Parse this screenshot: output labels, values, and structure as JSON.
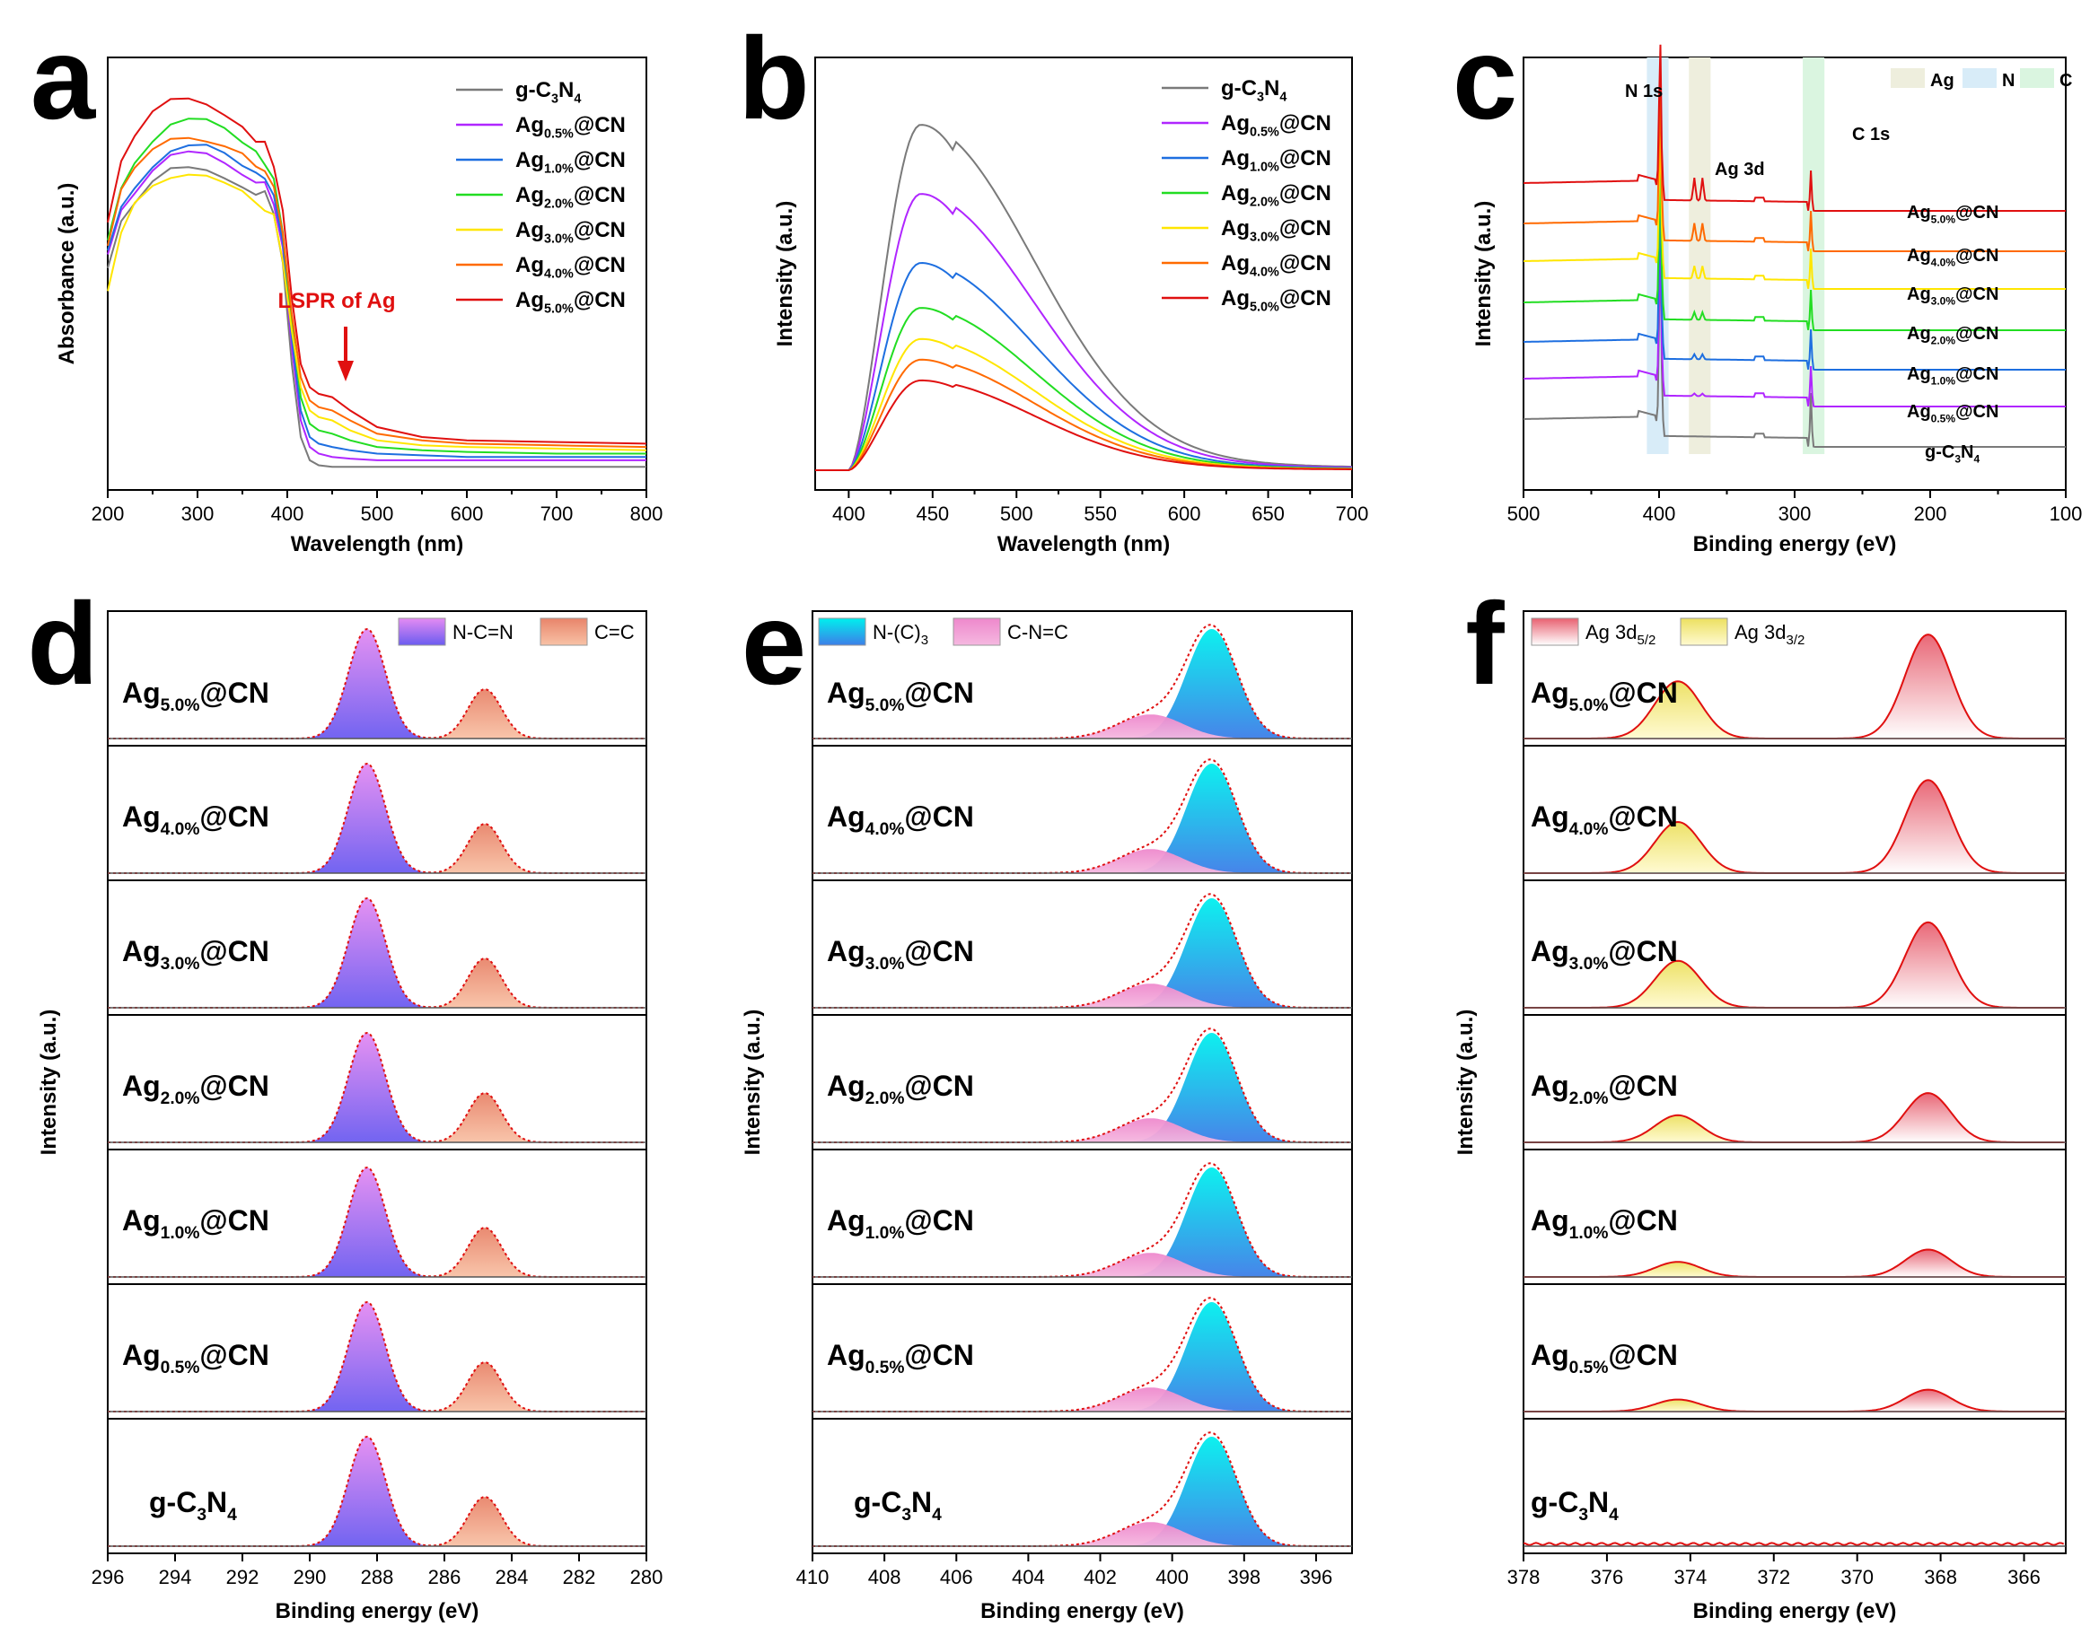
{
  "figure": {
    "series_colors": {
      "g-C3N4": "#7a7a7a",
      "Ag0.5": "#b026ff",
      "Ag1.0": "#1e6fe0",
      "Ag2.0": "#22dd22",
      "Ag3.0": "#ffe600",
      "Ag4.0": "#ff6a00",
      "Ag5.0": "#e01010"
    },
    "sample_labels": [
      {
        "base": "g-C",
        "sub1": "3",
        "mid": "N",
        "sub2": "4",
        "tail": ""
      },
      {
        "base": "Ag",
        "sub1": "0.5%",
        "mid": "",
        "sub2": "",
        "tail": "@CN"
      },
      {
        "base": "Ag",
        "sub1": "1.0%",
        "mid": "",
        "sub2": "",
        "tail": "@CN"
      },
      {
        "base": "Ag",
        "sub1": "2.0%",
        "mid": "",
        "sub2": "",
        "tail": "@CN"
      },
      {
        "base": "Ag",
        "sub1": "3.0%",
        "mid": "",
        "sub2": "",
        "tail": "@CN"
      },
      {
        "base": "Ag",
        "sub1": "4.0%",
        "mid": "",
        "sub2": "",
        "tail": "@CN"
      },
      {
        "base": "Ag",
        "sub1": "5.0%",
        "mid": "",
        "sub2": "",
        "tail": "@CN"
      }
    ],
    "fit_line_color": "#e01010",
    "envelope_color": "#333333"
  },
  "chart_data": [
    {
      "panel": "a",
      "type": "line",
      "title": "",
      "xlabel": "Wavelength (nm)",
      "ylabel": "Absorbance (a.u.)",
      "xlim": [
        200,
        800
      ],
      "xticks": [
        200,
        300,
        400,
        500,
        600,
        700,
        800
      ],
      "yticks_shown": false,
      "x": [
        200,
        215,
        230,
        250,
        270,
        290,
        310,
        330,
        350,
        365,
        375,
        385,
        395,
        405,
        415,
        425,
        435,
        450,
        470,
        500,
        550,
        600,
        700,
        800
      ],
      "series": [
        {
          "name": "g-C3N4",
          "values": [
            0.6,
            0.74,
            0.8,
            0.86,
            0.9,
            0.91,
            0.91,
            0.89,
            0.86,
            0.84,
            0.83,
            0.78,
            0.62,
            0.32,
            0.1,
            0.03,
            0.015,
            0.01,
            0.01,
            0.01,
            0.01,
            0.01,
            0.01,
            0.01
          ]
        },
        {
          "name": "Ag0.5%@CN",
          "values": [
            0.64,
            0.78,
            0.84,
            0.9,
            0.94,
            0.95,
            0.95,
            0.93,
            0.9,
            0.87,
            0.86,
            0.81,
            0.66,
            0.37,
            0.15,
            0.07,
            0.05,
            0.04,
            0.035,
            0.03,
            0.03,
            0.03,
            0.03,
            0.03
          ]
        },
        {
          "name": "Ag1.0%@CN",
          "values": [
            0.66,
            0.8,
            0.86,
            0.92,
            0.96,
            0.97,
            0.97,
            0.95,
            0.92,
            0.89,
            0.88,
            0.83,
            0.68,
            0.4,
            0.18,
            0.1,
            0.08,
            0.07,
            0.06,
            0.05,
            0.045,
            0.04,
            0.04,
            0.04
          ]
        },
        {
          "name": "Ag2.0%@CN",
          "values": [
            0.7,
            0.86,
            0.93,
            1.0,
            1.05,
            1.06,
            1.05,
            1.02,
            0.98,
            0.95,
            0.93,
            0.87,
            0.72,
            0.44,
            0.22,
            0.14,
            0.12,
            0.11,
            0.09,
            0.07,
            0.06,
            0.055,
            0.05,
            0.05
          ]
        },
        {
          "name": "Ag3.0%@CN",
          "values": [
            0.55,
            0.72,
            0.8,
            0.86,
            0.89,
            0.9,
            0.89,
            0.86,
            0.83,
            0.8,
            0.79,
            0.76,
            0.64,
            0.42,
            0.25,
            0.18,
            0.16,
            0.15,
            0.12,
            0.09,
            0.075,
            0.07,
            0.065,
            0.06
          ]
        },
        {
          "name": "Ag4.0%@CN",
          "values": [
            0.68,
            0.84,
            0.9,
            0.96,
            1.0,
            1.01,
            1.0,
            0.98,
            0.95,
            0.92,
            0.9,
            0.85,
            0.72,
            0.47,
            0.28,
            0.21,
            0.19,
            0.18,
            0.15,
            0.11,
            0.09,
            0.08,
            0.075,
            0.07
          ]
        },
        {
          "name": "Ag5.0%@CN",
          "values": [
            0.74,
            0.92,
            1.0,
            1.07,
            1.11,
            1.12,
            1.11,
            1.08,
            1.04,
            1.0,
            0.98,
            0.92,
            0.78,
            0.52,
            0.32,
            0.25,
            0.23,
            0.22,
            0.18,
            0.13,
            0.1,
            0.09,
            0.085,
            0.08
          ]
        }
      ],
      "annotation": {
        "text": "LSPR of Ag",
        "x": 465,
        "arrow": true,
        "color": "#e01010"
      }
    },
    {
      "panel": "b",
      "type": "line",
      "title": "",
      "xlabel": "Wavelength (nm)",
      "ylabel": "Intensity (a.u.)",
      "xlim": [
        380,
        700
      ],
      "xticks": [
        400,
        450,
        500,
        550,
        600,
        650,
        700
      ],
      "yticks_shown": false,
      "peak_center": 443,
      "series": [
        {
          "name": "g-C3N4",
          "peak": 1.0
        },
        {
          "name": "Ag0.5%@CN",
          "peak": 0.8
        },
        {
          "name": "Ag1.0%@CN",
          "peak": 0.6
        },
        {
          "name": "Ag2.0%@CN",
          "peak": 0.47
        },
        {
          "name": "Ag3.0%@CN",
          "peak": 0.38
        },
        {
          "name": "Ag4.0%@CN",
          "peak": 0.32
        },
        {
          "name": "Ag5.0%@CN",
          "peak": 0.26
        }
      ]
    },
    {
      "panel": "c",
      "type": "line",
      "title": "",
      "xlabel": "Binding energy (eV)",
      "ylabel": "Intensity (a.u.)",
      "xlim": [
        500,
        100
      ],
      "xticks": [
        500,
        400,
        300,
        200,
        100
      ],
      "peak_labels": [
        {
          "text": "N 1s",
          "x": 399
        },
        {
          "text": "Ag 3d",
          "x": 370
        },
        {
          "text": "C 1s",
          "x": 288
        }
      ],
      "bands": [
        {
          "name": "Ag",
          "from": 378,
          "to": 362,
          "color": "#eeeedd"
        },
        {
          "name": "N",
          "from": 409,
          "to": 393,
          "color": "#d8ecf8"
        },
        {
          "name": "C",
          "from": 294,
          "to": 278,
          "color": "#daf5e0"
        }
      ],
      "series": [
        {
          "name": "g-C3N4",
          "ag_intensity": 0.0
        },
        {
          "name": "Ag0.5%@CN",
          "ag_intensity": 0.1
        },
        {
          "name": "Ag1.0%@CN",
          "ag_intensity": 0.2
        },
        {
          "name": "Ag2.0%@CN",
          "ag_intensity": 0.3
        },
        {
          "name": "Ag3.0%@CN",
          "ag_intensity": 0.5
        },
        {
          "name": "Ag4.0%@CN",
          "ag_intensity": 0.7
        },
        {
          "name": "Ag5.0%@CN",
          "ag_intensity": 0.9
        }
      ]
    },
    {
      "panel": "d",
      "type": "area",
      "title": "",
      "xlabel": "Binding energy (eV)",
      "ylabel": "Intensity (a.u.)",
      "xlim": [
        296,
        280
      ],
      "xticks": [
        296,
        294,
        292,
        290,
        288,
        286,
        284,
        282,
        280
      ],
      "components": [
        {
          "name": "N-C=N",
          "center": 288.3,
          "width": 0.55,
          "amplitude": 1.0,
          "color_top": "#e48bf2",
          "color_bottom": "#6b5cf0"
        },
        {
          "name": "C=C",
          "center": 284.8,
          "width": 0.5,
          "amplitude": 0.45,
          "color_top": "#e8846a",
          "color_bottom": "#f8c2a6"
        }
      ],
      "rows_top_to_bottom": [
        "Ag5.0%@CN",
        "Ag4.0%@CN",
        "Ag3.0%@CN",
        "Ag2.0%@CN",
        "Ag1.0%@CN",
        "Ag0.5%@CN",
        "g-C3N4"
      ]
    },
    {
      "panel": "e",
      "type": "area",
      "title": "",
      "xlabel": "Binding energy (eV)",
      "ylabel": "Intensity (a.u.)",
      "xlim": [
        410,
        395
      ],
      "xticks": [
        410,
        408,
        406,
        404,
        402,
        400,
        398,
        396
      ],
      "components": [
        {
          "name": "N-(C)3",
          "center": 398.9,
          "width": 0.7,
          "amplitude": 1.0,
          "color_top": "#00f0ee",
          "color_bottom": "#3d7ee8"
        },
        {
          "name": "C-N=C",
          "center": 400.6,
          "width": 0.9,
          "amplitude": 0.22,
          "color_top": "#ee88cc",
          "color_bottom": "#f5b8e0"
        }
      ],
      "rows_top_to_bottom": [
        "Ag5.0%@CN",
        "Ag4.0%@CN",
        "Ag3.0%@CN",
        "Ag2.0%@CN",
        "Ag1.0%@CN",
        "Ag0.5%@CN",
        "g-C3N4"
      ]
    },
    {
      "panel": "f",
      "type": "area",
      "title": "",
      "xlabel": "Binding energy (eV)",
      "ylabel": "Intensity (a.u.)",
      "xlim": [
        378,
        365
      ],
      "xticks": [
        378,
        376,
        374,
        372,
        370,
        368,
        366
      ],
      "components": [
        {
          "name": "Ag 3d5/2",
          "center": 368.3,
          "width": 0.55,
          "color_top": "#e86070",
          "color_bottom": "#ffffff"
        },
        {
          "name": "Ag 3d3/2",
          "center": 374.3,
          "width": 0.55,
          "color_top": "#ece060",
          "color_bottom": "#fffad0"
        }
      ],
      "rows_top_to_bottom": [
        "Ag5.0%@CN",
        "Ag4.0%@CN",
        "Ag3.0%@CN",
        "Ag2.0%@CN",
        "Ag1.0%@CN",
        "Ag0.5%@CN",
        "g-C3N4"
      ],
      "row_amplitudes": [
        0.95,
        0.85,
        0.78,
        0.45,
        0.25,
        0.2,
        0.0
      ]
    }
  ],
  "panel_letters": [
    "a",
    "b",
    "c",
    "d",
    "e",
    "f"
  ],
  "legend_entries": {
    "a": [
      "g-C3N4",
      "Ag0.5%@CN",
      "Ag1.0%@CN",
      "Ag2.0%@CN",
      "Ag3.0%@CN",
      "Ag4.0%@CN",
      "Ag5.0%@CN"
    ],
    "b": [
      "g-C3N4",
      "Ag0.5%@CN",
      "Ag1.0%@CN",
      "Ag2.0%@CN",
      "Ag3.0%@CN",
      "Ag4.0%@CN",
      "Ag5.0%@CN"
    ],
    "c": [
      "Ag",
      "N",
      "C"
    ],
    "d": [
      "N-C=N",
      "C=C"
    ],
    "e": [
      "N-(C)3",
      "C-N=C"
    ],
    "f": [
      "Ag 3d5/2",
      "Ag 3d3/2"
    ]
  }
}
